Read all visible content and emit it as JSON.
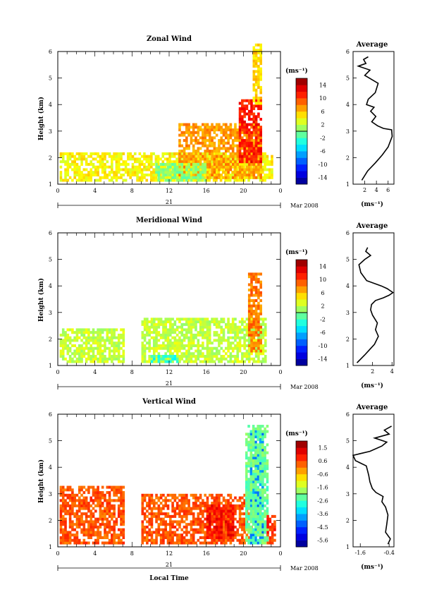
{
  "panels": [
    {
      "id": "zonal",
      "title": "Zonal Wind",
      "ylabel": "Height (km)",
      "yticks": [
        "1",
        "2",
        "3",
        "4",
        "5",
        "6"
      ],
      "xticks": [
        "0",
        "4",
        "8",
        "12",
        "16",
        "20",
        "0"
      ],
      "day_label": "21",
      "month_label": "Mar 2008",
      "unit_label": "(ms⁻¹)",
      "colorbar_ticks": [
        "14",
        "10",
        "6",
        "2",
        "-2",
        "-6",
        "-10",
        "-14"
      ],
      "colorbar_range": [
        -16,
        16
      ],
      "avg_title": "Average",
      "avg_xticks": [
        "2",
        "4",
        "6"
      ],
      "avg_xrange": [
        0,
        7
      ],
      "avg_unit": "(ms⁻¹)"
    },
    {
      "id": "meridional",
      "title": "Meridional Wind",
      "ylabel": "Height (km)",
      "yticks": [
        "1",
        "2",
        "3",
        "4",
        "5",
        "6"
      ],
      "xticks": [
        "0",
        "4",
        "8",
        "12",
        "16",
        "20",
        "0"
      ],
      "day_label": "21",
      "month_label": "Mar 2008",
      "unit_label": "(ms⁻¹)",
      "colorbar_ticks": [
        "14",
        "10",
        "6",
        "2",
        "-2",
        "-6",
        "-10",
        "-14"
      ],
      "colorbar_range": [
        -16,
        16
      ],
      "avg_title": "Average",
      "avg_xticks": [
        "2",
        "4"
      ],
      "avg_xrange": [
        0,
        4.2
      ],
      "avg_unit": "(ms⁻¹)"
    },
    {
      "id": "vertical",
      "title": "Vertical Wind",
      "ylabel": "Height (km)",
      "yticks": [
        "1",
        "2",
        "3",
        "4",
        "5",
        "6"
      ],
      "xticks": [
        "0",
        "4",
        "8",
        "12",
        "16",
        "20",
        "0"
      ],
      "day_label": "21",
      "month_label": "Mar 2008",
      "xlabel": "Local Time",
      "unit_label": "(ms⁻¹)",
      "colorbar_ticks": [
        "1.5",
        "0.6",
        "-0.6",
        "-1.6",
        "-2.6",
        "-3.6",
        "-4.5",
        "-5.6"
      ],
      "colorbar_range": [
        -6,
        2
      ],
      "avg_title": "Average",
      "avg_xticks": [
        "-1.6",
        "-0.4"
      ],
      "avg_xrange": [
        -1.9,
        -0.2
      ],
      "avg_unit": "(ms⁻¹)"
    }
  ],
  "chart_data": [
    {
      "type": "heatmap",
      "title": "Zonal Wind",
      "xlabel": "",
      "ylabel": "Height (km)",
      "x_range_hours": [
        0,
        24
      ],
      "ylim": [
        1,
        6
      ],
      "color_range": [
        -16,
        16
      ],
      "note": "time-height cross-section of zonal wind, 21 Mar 2008",
      "regions": [
        {
          "t0": 0.2,
          "t1": 23,
          "h0": 1.1,
          "h1": 2.2,
          "value": 4
        },
        {
          "t0": 13,
          "t1": 22,
          "h0": 1.2,
          "h1": 3.3,
          "value": 7
        },
        {
          "t0": 19.5,
          "t1": 22,
          "h0": 1.8,
          "h1": 4.2,
          "value": 11
        },
        {
          "t0": 21,
          "t1": 22,
          "h0": 4.0,
          "h1": 6.2,
          "value": 5
        },
        {
          "t0": 10.5,
          "t1": 16,
          "h0": 1.1,
          "h1": 1.8,
          "value": 0
        }
      ]
    },
    {
      "type": "line",
      "title": "Average",
      "xlabel": "(ms⁻¹)",
      "xlim": [
        0,
        7
      ],
      "ylim": [
        1,
        6
      ],
      "series": [
        {
          "x": [
            1.5,
            2.5,
            3.8,
            5.0,
            6.0,
            6.7,
            6.6,
            5.2,
            4.2,
            3.2,
            3.9,
            3.0,
            3.6,
            2.3,
            2.6,
            3.8,
            4.3,
            2.0,
            2.9,
            0.9,
            2.2,
            1.8,
            2.6
          ],
          "y": [
            1.15,
            1.5,
            1.8,
            2.1,
            2.4,
            2.8,
            3.05,
            3.1,
            3.2,
            3.35,
            3.55,
            3.75,
            3.9,
            4.0,
            4.2,
            4.45,
            4.8,
            5.1,
            5.3,
            5.45,
            5.55,
            5.7,
            5.8
          ]
        }
      ]
    },
    {
      "type": "heatmap",
      "title": "Meridional Wind",
      "xlabel": "",
      "ylabel": "Height (km)",
      "x_range_hours": [
        0,
        24
      ],
      "ylim": [
        1,
        6
      ],
      "color_range": [
        -16,
        16
      ],
      "note": "time-height cross-section of meridional wind, 21 Mar 2008",
      "regions": [
        {
          "t0": 0.2,
          "t1": 7,
          "h0": 1.1,
          "h1": 2.4,
          "value": 2
        },
        {
          "t0": 9,
          "t1": 22.5,
          "h0": 1.1,
          "h1": 2.8,
          "value": 2
        },
        {
          "t0": 10,
          "t1": 13,
          "h0": 1.1,
          "h1": 1.4,
          "value": -3
        },
        {
          "t0": 20.5,
          "t1": 21.8,
          "h0": 1.5,
          "h1": 4.5,
          "value": 8
        }
      ]
    },
    {
      "type": "line",
      "title": "Average",
      "xlabel": "(ms⁻¹)",
      "xlim": [
        0,
        4.2
      ],
      "ylim": [
        1,
        6
      ],
      "series": [
        {
          "x": [
            0.4,
            1.2,
            1.7,
            2.2,
            2.6,
            2.3,
            2.5,
            2.0,
            1.8,
            1.9,
            2.3,
            3.1,
            3.7,
            4.1,
            3.5,
            2.9,
            1.4,
            0.8,
            0.6,
            1.2,
            1.8,
            1.3,
            1.5
          ],
          "y": [
            1.1,
            1.4,
            1.6,
            1.8,
            2.1,
            2.35,
            2.6,
            2.9,
            3.1,
            3.3,
            3.45,
            3.55,
            3.65,
            3.75,
            3.9,
            4.0,
            4.2,
            4.5,
            4.8,
            5.0,
            5.15,
            5.3,
            5.45
          ]
        }
      ]
    },
    {
      "type": "heatmap",
      "title": "Vertical Wind",
      "xlabel": "Local Time",
      "ylabel": "Height (km)",
      "x_range_hours": [
        0,
        24
      ],
      "ylim": [
        1,
        6
      ],
      "color_range": [
        -6,
        2
      ],
      "note": "time-height cross-section of vertical wind, 21 Mar 2008",
      "regions": [
        {
          "t0": 0.2,
          "t1": 7,
          "h0": 1.1,
          "h1": 3.3,
          "value": 0.3
        },
        {
          "t0": 9,
          "t1": 21,
          "h0": 1.1,
          "h1": 3.0,
          "value": 0.3
        },
        {
          "t0": 16,
          "t1": 19,
          "h0": 1.3,
          "h1": 2.6,
          "value": 0.9
        },
        {
          "t0": 20.7,
          "t1": 22,
          "h0": 1.1,
          "h1": 5.3,
          "value": -4.0
        },
        {
          "t0": 20.2,
          "t1": 22.6,
          "h0": 1.1,
          "h1": 5.5,
          "value": -2.2
        },
        {
          "t0": 22.5,
          "t1": 23.5,
          "h0": 1.1,
          "h1": 2.2,
          "value": 0.6
        }
      ]
    },
    {
      "type": "line",
      "title": "Average",
      "xlabel": "(ms⁻¹)",
      "xlim": [
        -1.9,
        -0.2
      ],
      "ylim": [
        1,
        6
      ],
      "series": [
        {
          "x": [
            -0.45,
            -0.35,
            -0.55,
            -0.5,
            -0.45,
            -0.55,
            -0.7,
            -0.65,
            -0.95,
            -1.1,
            -1.2,
            -1.25,
            -1.35,
            -1.8,
            -1.9,
            -1.2,
            -0.7,
            -0.5,
            -1.0,
            -0.4,
            -0.6,
            -0.3
          ],
          "y": [
            1.1,
            1.3,
            1.55,
            1.85,
            2.2,
            2.5,
            2.7,
            2.9,
            3.05,
            3.2,
            3.45,
            3.7,
            4.05,
            4.25,
            4.45,
            4.6,
            4.8,
            4.95,
            5.1,
            5.25,
            5.4,
            5.55
          ]
        }
      ]
    }
  ]
}
